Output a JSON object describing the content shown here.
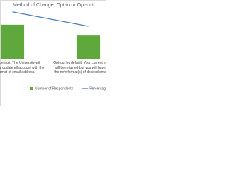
{
  "chart_data": {
    "type": "bar",
    "title": "Method of Change: Opt-in or Opt-out",
    "categories": [
      "Opt-in by default: The University will automatically update all account with the new format of email address.",
      "Opt-out by default. Your current email format will be retained but you will have to set it to the new format(s) of desired email address."
    ],
    "series": [
      {
        "name": "Number of Respondents",
        "color": "#5fa83c",
        "type": "bar",
        "values": [
          66,
          45
        ]
      },
      {
        "name": "Percentage",
        "color": "#4a7ebf",
        "type": "line",
        "axis": "y2",
        "values": [
          59,
          41
        ]
      }
    ],
    "ylim": [
      0,
      100
    ],
    "y2lim": [
      0,
      65
    ],
    "legend": "bottom"
  }
}
